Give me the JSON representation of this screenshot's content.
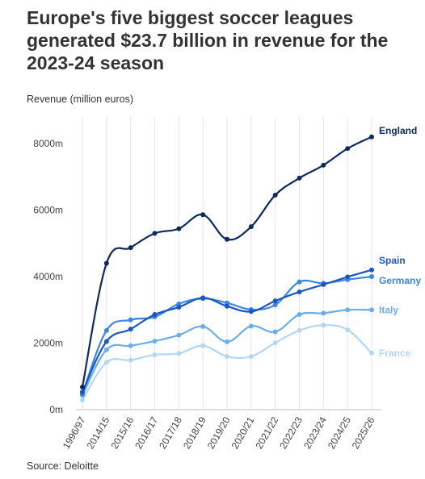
{
  "chart_data": {
    "type": "line",
    "title": "Europe's five biggest soccer leagues generated $23.7 billion in revenue for the 2023-24 season",
    "ylabel": "Revenue (million euros)",
    "xlabel": "",
    "source": "Source: Deloitte",
    "ylim": [
      0,
      8800
    ],
    "yticks": [
      {
        "value": 0,
        "label": "0m"
      },
      {
        "value": 2000,
        "label": "2000m"
      },
      {
        "value": 4000,
        "label": "4000m"
      },
      {
        "value": 6000,
        "label": "6000m"
      },
      {
        "value": 8000,
        "label": "8000m"
      }
    ],
    "categories": [
      "1996/97",
      "2014/15",
      "2015/16",
      "2016/17",
      "2017/18",
      "2018/19",
      "2019/20",
      "2020/21",
      "2021/22",
      "2022/23",
      "2023/24",
      "2024/25",
      "2025/26"
    ],
    "grid": "vertical",
    "series": [
      {
        "name": "England",
        "color": "#0d2a5e",
        "values": [
          680,
          4400,
          4870,
          5300,
          5440,
          5860,
          5120,
          5500,
          6450,
          6960,
          7350,
          7850,
          8200
        ]
      },
      {
        "name": "Spain",
        "color": "#1a56c4",
        "values": [
          530,
          2050,
          2420,
          2860,
          3080,
          3360,
          3110,
          2950,
          3270,
          3540,
          3760,
          3990,
          4200
        ]
      },
      {
        "name": "Germany",
        "color": "#3b86e0",
        "values": [
          470,
          2380,
          2700,
          2790,
          3180,
          3340,
          3210,
          3010,
          3150,
          3840,
          3800,
          3910,
          4000
        ]
      },
      {
        "name": "Italy",
        "color": "#6aaeea",
        "values": [
          430,
          1800,
          1920,
          2060,
          2240,
          2500,
          2040,
          2510,
          2340,
          2860,
          2900,
          3000,
          3000
        ]
      },
      {
        "name": "France",
        "color": "#b4d6f5",
        "values": [
          290,
          1420,
          1490,
          1650,
          1690,
          1920,
          1600,
          1600,
          2010,
          2380,
          2540,
          2400,
          1700
        ]
      }
    ]
  }
}
